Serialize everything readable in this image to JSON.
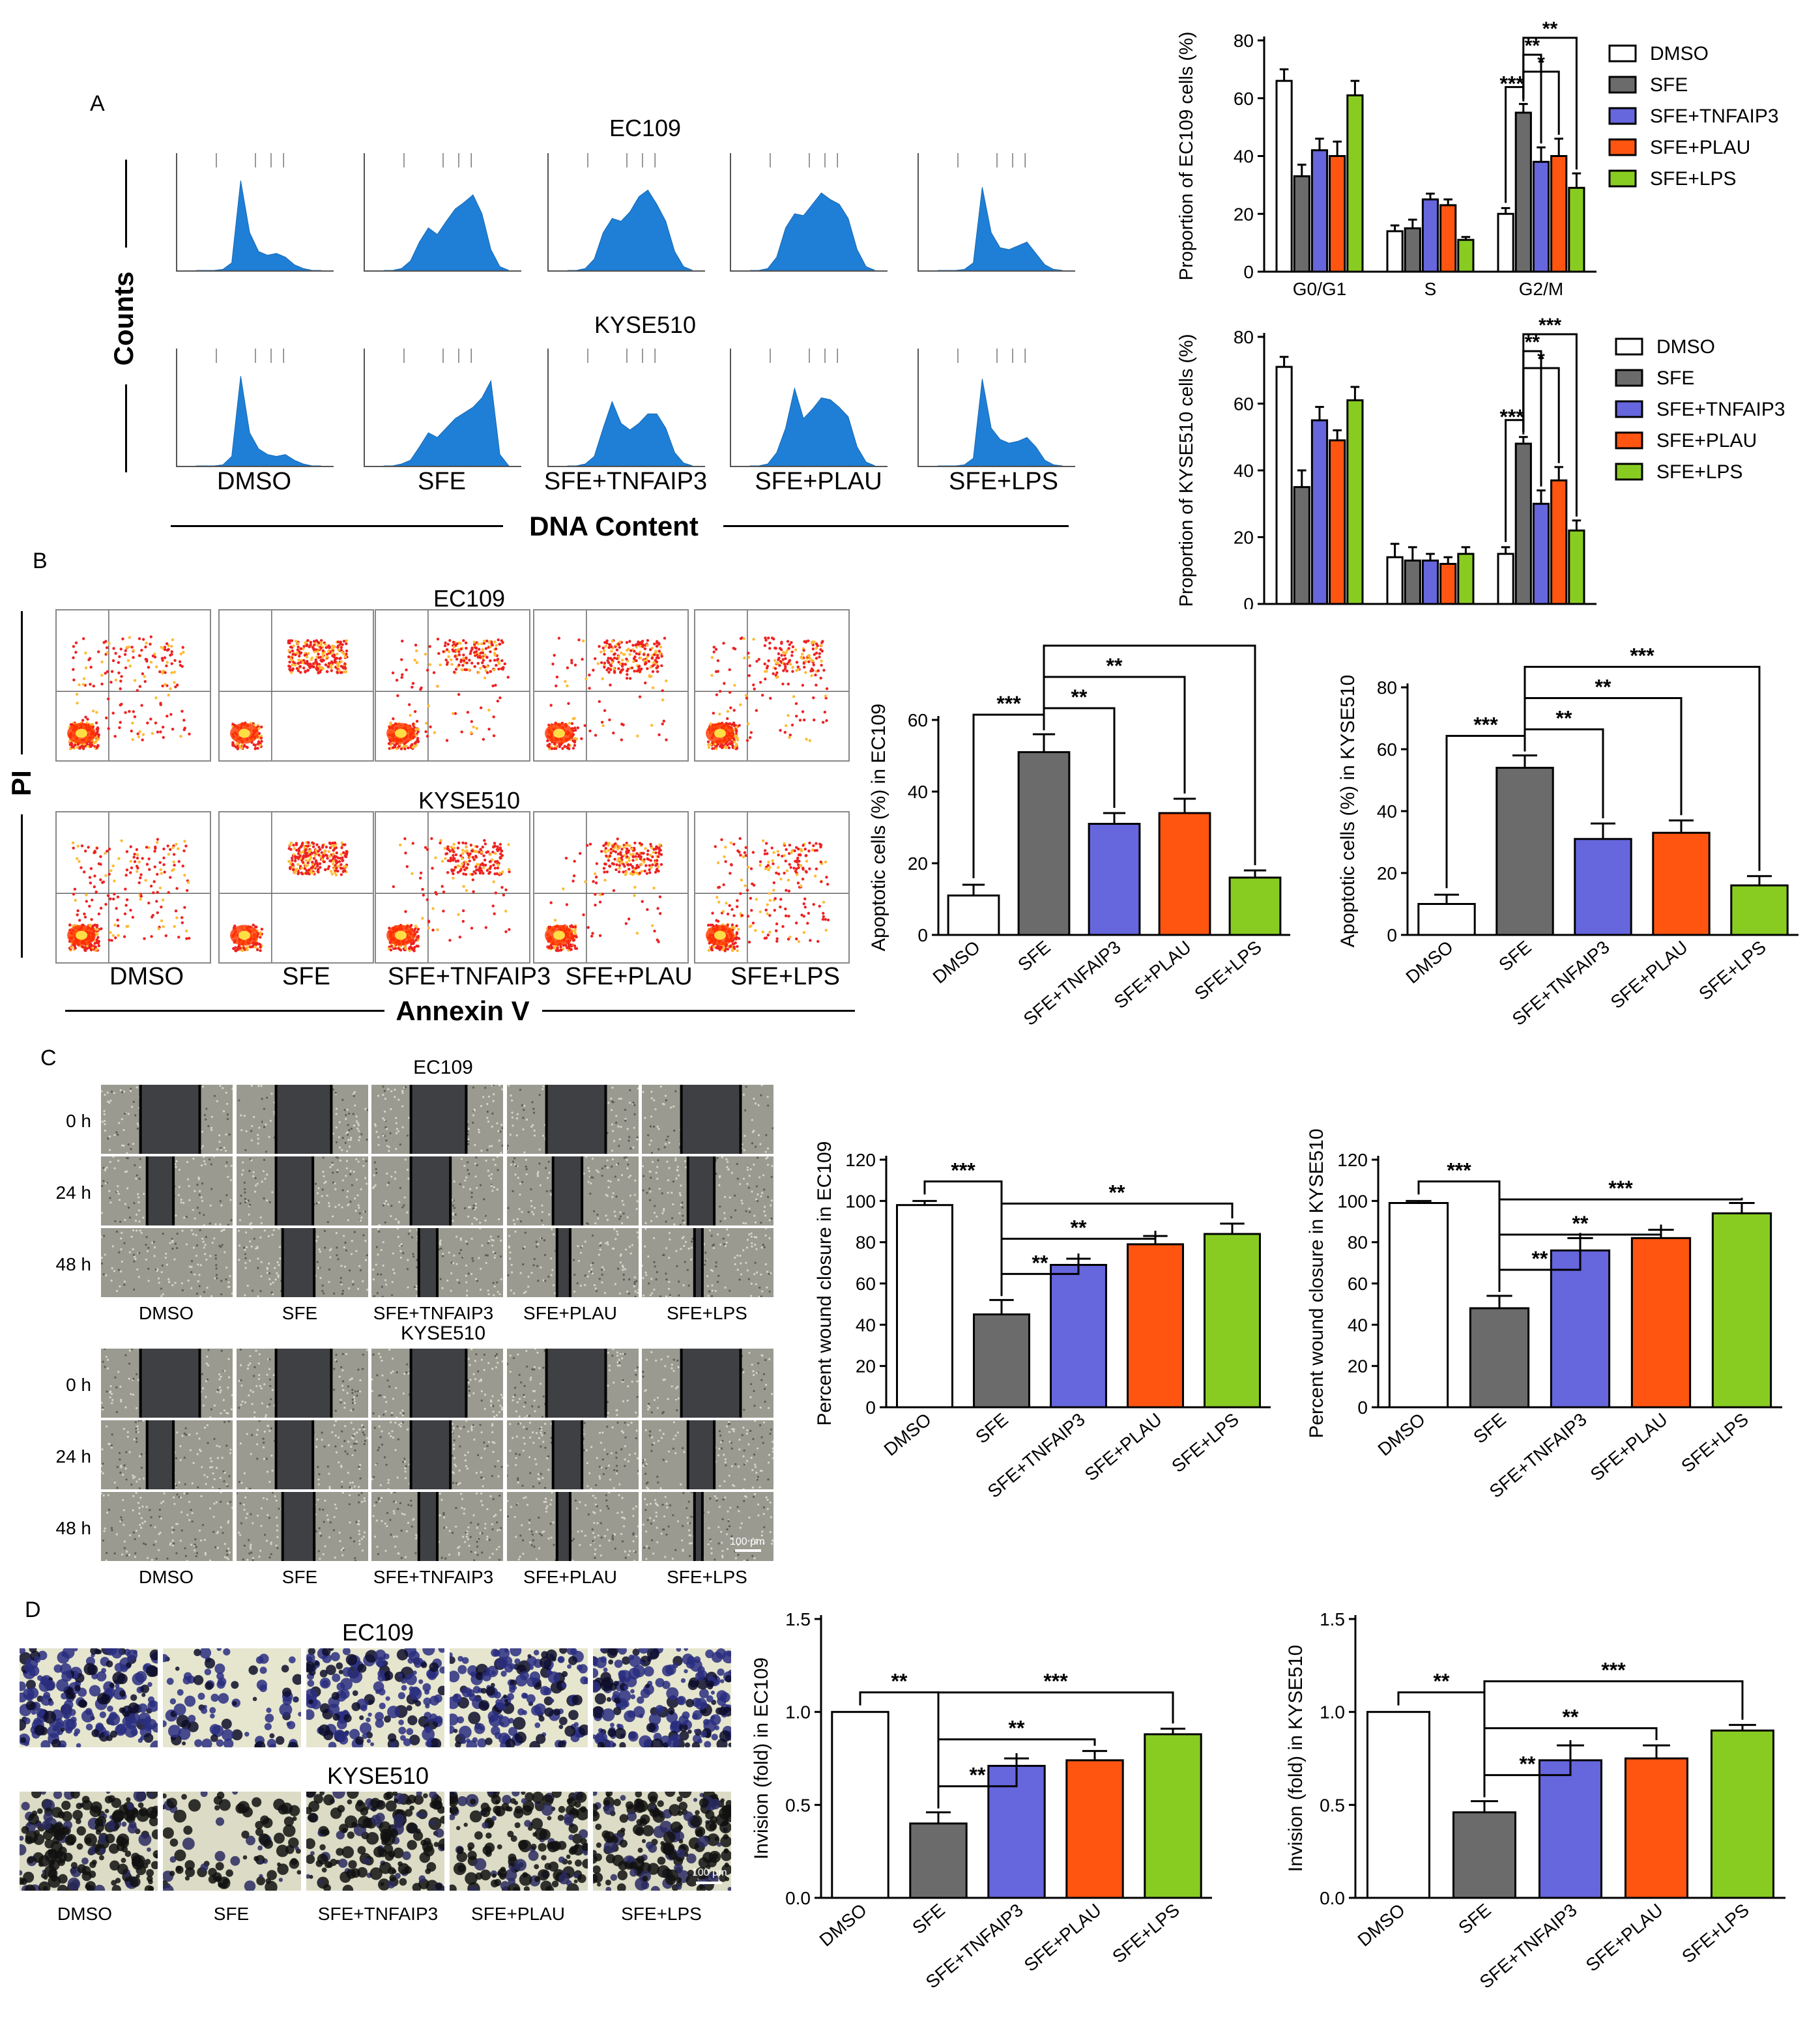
{
  "conditions": [
    "DMSO",
    "SFE",
    "SFE+TNFAIP3",
    "SFE+PLAU",
    "SFE+LPS"
  ],
  "colors": {
    "DMSO": "#ffffff",
    "SFE": "#6b6b6b",
    "SFE+TNFAIP3": "#6666dd",
    "SFE+PLAU": "#ff5511",
    "SFE+LPS": "#88cc22"
  },
  "panelA": {
    "letter": "A",
    "row_titles": [
      "EC109",
      "KYSE510"
    ],
    "y_label": "Counts",
    "x_label": "DNA Content"
  },
  "panelB": {
    "letter": "B",
    "row_titles": [
      "EC109",
      "KYSE510"
    ],
    "y_label": "PI",
    "x_label": "Annexin V"
  },
  "panelC": {
    "letter": "C",
    "row_titles": [
      "EC109",
      "KYSE510"
    ],
    "times": [
      "0 h",
      "24 h",
      "48 h"
    ],
    "scale_bar": "100 μm"
  },
  "panelD": {
    "letter": "D",
    "row_titles": [
      "EC109",
      "KYSE510"
    ],
    "scale_bar": "100 μm"
  },
  "chart_data": [
    {
      "id": "cellcycle_ec109",
      "type": "bar",
      "ylabel": "Proportion of EC109 cells (%)",
      "xlabel": "",
      "categories": [
        "G0/G1",
        "S",
        "G2/M"
      ],
      "ylim": [
        0,
        80
      ],
      "yticks": [
        0,
        20,
        40,
        60,
        80
      ],
      "series": [
        {
          "name": "DMSO",
          "values": [
            66,
            14,
            20
          ],
          "errors": [
            4,
            2,
            2
          ]
        },
        {
          "name": "SFE",
          "values": [
            33,
            15,
            55
          ],
          "errors": [
            4,
            3,
            3
          ]
        },
        {
          "name": "SFE+TNFAIP3",
          "values": [
            42,
            25,
            38
          ],
          "errors": [
            4,
            2,
            5
          ]
        },
        {
          "name": "SFE+PLAU",
          "values": [
            40,
            23,
            40
          ],
          "errors": [
            5,
            2,
            6
          ]
        },
        {
          "name": "SFE+LPS",
          "values": [
            61,
            11,
            29
          ],
          "errors": [
            5,
            1,
            5
          ]
        }
      ],
      "legend": "right",
      "annotations": [
        "***",
        "*",
        "**",
        "**"
      ]
    },
    {
      "id": "cellcycle_kyse510",
      "type": "bar",
      "ylabel": "Proportion of KYSE510 cells (%)",
      "xlabel": "",
      "categories": [
        "G0/G1",
        "S",
        "G2/M"
      ],
      "ylim": [
        0,
        80
      ],
      "yticks": [
        0,
        20,
        40,
        60,
        80
      ],
      "series": [
        {
          "name": "DMSO",
          "values": [
            71,
            14,
            15
          ],
          "errors": [
            3,
            4,
            2
          ]
        },
        {
          "name": "SFE",
          "values": [
            35,
            13,
            48
          ],
          "errors": [
            5,
            4,
            2
          ]
        },
        {
          "name": "SFE+TNFAIP3",
          "values": [
            55,
            13,
            30
          ],
          "errors": [
            4,
            2,
            4
          ]
        },
        {
          "name": "SFE+PLAU",
          "values": [
            49,
            12,
            37
          ],
          "errors": [
            3,
            2,
            4
          ]
        },
        {
          "name": "SFE+LPS",
          "values": [
            61,
            15,
            22
          ],
          "errors": [
            4,
            2,
            3
          ]
        }
      ],
      "legend": "right",
      "annotations": [
        "***",
        "*",
        "**",
        "***"
      ]
    },
    {
      "id": "apoptosis_ec109",
      "type": "bar",
      "ylabel": "Apoptotic cells (%) in EC109",
      "xlabel": "",
      "categories": [
        "DMSO",
        "SFE",
        "SFE+TNFAIP3",
        "SFE+PLAU",
        "SFE+LPS"
      ],
      "values": [
        11,
        51,
        31,
        34,
        16
      ],
      "errors": [
        3,
        5,
        3,
        4,
        2
      ],
      "ylim": [
        0,
        60
      ],
      "yticks": [
        0,
        20,
        40,
        60
      ],
      "annotations": [
        "***",
        "**",
        "**",
        "***"
      ]
    },
    {
      "id": "apoptosis_kyse510",
      "type": "bar",
      "ylabel": "Apoptotic cells (%) in KYSE510",
      "xlabel": "",
      "categories": [
        "DMSO",
        "SFE",
        "SFE+TNFAIP3",
        "SFE+PLAU",
        "SFE+LPS"
      ],
      "values": [
        10,
        54,
        31,
        33,
        16
      ],
      "errors": [
        3,
        4,
        5,
        4,
        3
      ],
      "ylim": [
        0,
        80
      ],
      "yticks": [
        0,
        20,
        40,
        60,
        80
      ],
      "annotations": [
        "***",
        "**",
        "**",
        "***"
      ]
    },
    {
      "id": "wound_ec109",
      "type": "bar",
      "ylabel": "Percent wound closure in EC109",
      "xlabel": "",
      "categories": [
        "DMSO",
        "SFE",
        "SFE+TNFAIP3",
        "SFE+PLAU",
        "SFE+LPS"
      ],
      "values": [
        98,
        45,
        69,
        79,
        84
      ],
      "errors": [
        2,
        7,
        3,
        4,
        5
      ],
      "ylim": [
        0,
        120
      ],
      "yticks": [
        0,
        20,
        40,
        60,
        80,
        100,
        120
      ],
      "annotations": [
        "***",
        "**",
        "**",
        "**"
      ]
    },
    {
      "id": "wound_kyse510",
      "type": "bar",
      "ylabel": "Percent wound closure in KYSE510",
      "xlabel": "",
      "categories": [
        "DMSO",
        "SFE",
        "SFE+TNFAIP3",
        "SFE+PLAU",
        "SFE+LPS"
      ],
      "values": [
        99,
        48,
        76,
        82,
        94
      ],
      "errors": [
        1,
        6,
        6,
        4,
        5
      ],
      "ylim": [
        0,
        120
      ],
      "yticks": [
        0,
        20,
        40,
        60,
        80,
        100,
        120
      ],
      "annotations": [
        "***",
        "**",
        "**",
        "***"
      ]
    },
    {
      "id": "invasion_ec109",
      "type": "bar",
      "ylabel": "Invision (fold) in EC109",
      "xlabel": "",
      "categories": [
        "DMSO",
        "SFE",
        "SFE+TNFAIP3",
        "SFE+PLAU",
        "SFE+LPS"
      ],
      "values": [
        1.0,
        0.4,
        0.71,
        0.74,
        0.88
      ],
      "errors": [
        0,
        0.06,
        0.04,
        0.05,
        0.03
      ],
      "ylim": [
        0,
        1.5
      ],
      "yticks": [
        0.0,
        0.5,
        1.0,
        1.5
      ],
      "ytick_labels": [
        "0.0",
        "0.5",
        "1.0",
        "1.5"
      ],
      "annotations": [
        "**",
        "**",
        "**",
        "***"
      ]
    },
    {
      "id": "invasion_kyse510",
      "type": "bar",
      "ylabel": "Invision (fold) in KYSE510",
      "xlabel": "",
      "categories": [
        "DMSO",
        "SFE",
        "SFE+TNFAIP3",
        "SFE+PLAU",
        "SFE+LPS"
      ],
      "values": [
        1.0,
        0.46,
        0.74,
        0.75,
        0.9
      ],
      "errors": [
        0,
        0.06,
        0.08,
        0.07,
        0.03
      ],
      "ylim": [
        0,
        1.5
      ],
      "yticks": [
        0.0,
        0.5,
        1.0,
        1.5
      ],
      "ytick_labels": [
        "0.0",
        "0.5",
        "1.0",
        "1.5"
      ],
      "annotations": [
        "**",
        "**",
        "**",
        "***"
      ]
    }
  ]
}
